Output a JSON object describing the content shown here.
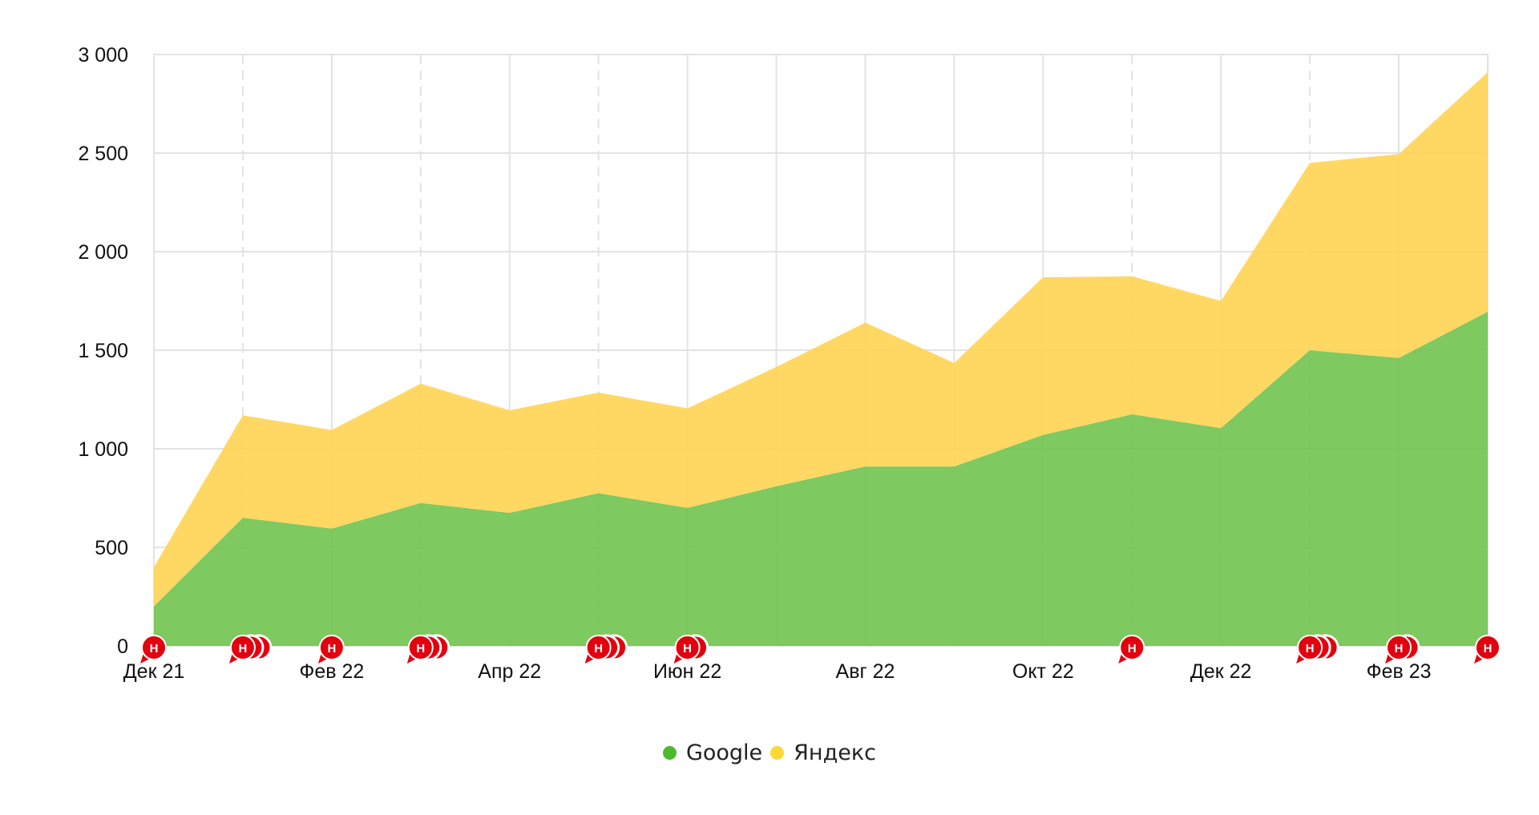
{
  "chart_data": {
    "type": "area",
    "stacked": true,
    "x": [
      "Дек 21",
      "Янв 22",
      "Фев 22",
      "Мар 22",
      "Апр 22",
      "Май 22",
      "Июн 22",
      "Июл 22",
      "Авг 22",
      "Сен 22",
      "Окт 22",
      "Ноя 22",
      "Дек 22",
      "Янв 23",
      "Фев 23",
      "Мар 23"
    ],
    "x_tick_labels": [
      "Дек 21",
      "Фев 22",
      "Апр 22",
      "Июн 22",
      "Авг 22",
      "Окт 22",
      "Дек 22",
      "Фев 23"
    ],
    "y_tick_labels": [
      "0",
      "500",
      "1 000",
      "1 500",
      "2 000",
      "2 500",
      "3 000"
    ],
    "ylim": [
      0,
      3000
    ],
    "grid": true,
    "legend_position": "bottom-center",
    "series": [
      {
        "name": "Google",
        "color": "#6cc24a",
        "values": [
          200,
          650,
          595,
          725,
          675,
          775,
          700,
          810,
          910,
          910,
          1070,
          1175,
          1105,
          1500,
          1460,
          1695
        ]
      },
      {
        "name": "Яндекс",
        "color": "#ffd34f",
        "values": [
          200,
          520,
          500,
          605,
          520,
          510,
          505,
          605,
          730,
          525,
          800,
          700,
          645,
          950,
          1035,
          1215
        ]
      }
    ],
    "annotations": {
      "label": "Н",
      "color": "#e3000f",
      "markers": [
        {
          "x": "Дек 21",
          "count": 1
        },
        {
          "x": "Янв 22",
          "count": 3
        },
        {
          "x": "Фев 22",
          "count": 1
        },
        {
          "x": "Мар 22",
          "count": 3
        },
        {
          "x": "Май 22",
          "count": 3
        },
        {
          "x": "Июн 22",
          "count": 2
        },
        {
          "x": "Ноя 22",
          "count": 1
        },
        {
          "x": "Янв 23",
          "count": 3
        },
        {
          "x": "Фев 23",
          "count": 2
        },
        {
          "x": "Мар 23",
          "count": 1
        }
      ]
    },
    "dashed_gridlines_at": [
      "Янв 22",
      "Мар 22",
      "Май 22",
      "Ноя 22",
      "Янв 23"
    ]
  },
  "legend": {
    "items": [
      {
        "label": "Google",
        "color": "#4cba2a"
      },
      {
        "label": "Яндекс",
        "color": "#fdd835"
      }
    ]
  }
}
